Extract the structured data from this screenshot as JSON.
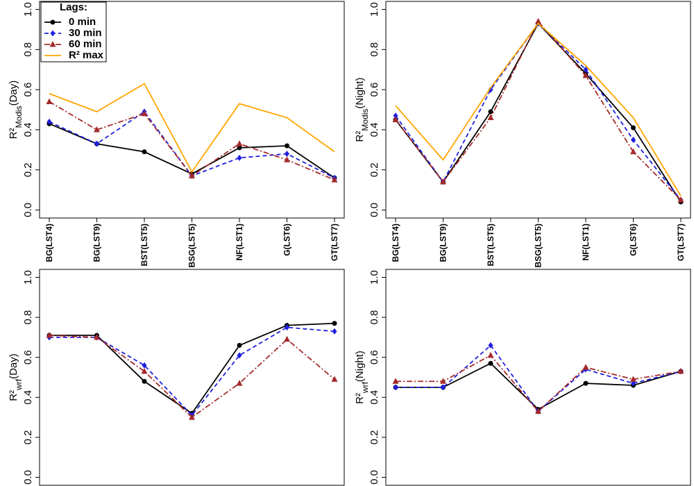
{
  "chart_data": [
    {
      "type": "line",
      "ylabel": [
        "R²",
        "Modis",
        "(Day)"
      ],
      "categories": [
        "BG(LST4)",
        "BG(LST9)",
        "BST(LST5)",
        "BSG(LST5)",
        "NF(LST1)",
        "G(LST6)",
        "GT(LST7)"
      ],
      "ylim": [
        -0.04,
        1.04
      ],
      "yticks": [
        {
          "value": 0,
          "label": "0.0"
        },
        0.2,
        0.4,
        0.6,
        0.8,
        {
          "value": 1,
          "label": "1.0"
        }
      ],
      "legend": {
        "title": "Lags:",
        "position": "upper left"
      },
      "series": [
        {
          "name": "0 min",
          "color": "#000000",
          "linestyle": "solid",
          "marker": "circle",
          "values": [
            0.43,
            0.33,
            0.29,
            0.18,
            0.31,
            0.32,
            0.16
          ]
        },
        {
          "name": "30 min",
          "color": "#1f1fe0",
          "linestyle": "dashed",
          "marker": "diamond",
          "values": [
            0.44,
            0.33,
            0.49,
            0.17,
            0.26,
            0.28,
            0.16
          ]
        },
        {
          "name": "60 min",
          "color": "#a52a2a",
          "linestyle": "dotdash",
          "marker": "triangle",
          "values": [
            0.54,
            0.4,
            0.48,
            0.17,
            0.33,
            0.25,
            0.15
          ]
        },
        {
          "name": "R² max",
          "color": "#ffa500",
          "linestyle": "solid",
          "values": [
            0.58,
            0.49,
            0.63,
            0.19,
            0.53,
            0.46,
            0.29
          ]
        }
      ]
    },
    {
      "type": "line",
      "ylabel": [
        "R²",
        "Modis",
        "(Night)"
      ],
      "categories": [
        "BG(LST4)",
        "BG(LST9)",
        "BST(LST5)",
        "BSG(LST5)",
        "NF(LST1)",
        "G(LST6)",
        "GT(LST7)"
      ],
      "ylim": [
        -0.04,
        1.04
      ],
      "yticks": [
        {
          "value": 0,
          "label": "0.0"
        },
        0.2,
        0.4,
        0.6,
        0.8,
        {
          "value": 1,
          "label": "1.0"
        }
      ],
      "series": [
        {
          "color": "#000000",
          "linestyle": "solid",
          "marker": "circle",
          "values": [
            0.45,
            0.14,
            0.49,
            0.93,
            0.68,
            0.41,
            0.04
          ]
        },
        {
          "color": "#1f1fe0",
          "linestyle": "dashed",
          "marker": "diamond",
          "values": [
            0.47,
            0.14,
            0.6,
            0.93,
            0.7,
            0.35,
            0.05
          ]
        },
        {
          "color": "#a52a2a",
          "linestyle": "dotdash",
          "marker": "triangle",
          "values": [
            0.45,
            0.14,
            0.46,
            0.94,
            0.67,
            0.29,
            0.05
          ]
        },
        {
          "color": "#ffa500",
          "linestyle": "solid",
          "values": [
            0.52,
            0.25,
            0.61,
            0.93,
            0.72,
            0.46,
            0.07
          ]
        }
      ]
    },
    {
      "type": "line",
      "ylabel": [
        "R²",
        "wrf",
        "(Day)"
      ],
      "ylim": [
        -0.04,
        1.04
      ],
      "yticks": [
        {
          "value": 0,
          "label": "0.0"
        },
        0.2,
        0.4,
        0.6,
        0.8,
        {
          "value": 1,
          "label": "1.0"
        }
      ],
      "series": [
        {
          "color": "#000000",
          "linestyle": "solid",
          "marker": "circle",
          "values": [
            0.71,
            0.71,
            0.48,
            0.32,
            0.66,
            0.76,
            0.77
          ]
        },
        {
          "color": "#1f1fe0",
          "linestyle": "dashed",
          "marker": "diamond",
          "values": [
            0.7,
            0.7,
            0.56,
            0.31,
            0.61,
            0.75,
            0.73
          ]
        },
        {
          "color": "#a52a2a",
          "linestyle": "dotdash",
          "marker": "triangle",
          "values": [
            0.71,
            0.7,
            0.53,
            0.3,
            0.47,
            0.69,
            0.49
          ]
        }
      ]
    },
    {
      "type": "line",
      "ylabel": [
        "R²",
        "wrf",
        "(Night)"
      ],
      "ylim": [
        -0.04,
        1.04
      ],
      "yticks": [
        {
          "value": 0,
          "label": "0.0"
        },
        0.2,
        0.4,
        0.6,
        0.8,
        {
          "value": 1,
          "label": "1.0"
        }
      ],
      "series": [
        {
          "color": "#000000",
          "linestyle": "solid",
          "marker": "circle",
          "values": [
            0.45,
            0.45,
            0.57,
            0.34,
            0.47,
            0.46,
            0.53
          ]
        },
        {
          "color": "#1f1fe0",
          "linestyle": "dashed",
          "marker": "diamond",
          "values": [
            0.45,
            0.45,
            0.66,
            0.33,
            0.54,
            0.47,
            0.53
          ]
        },
        {
          "color": "#a52a2a",
          "linestyle": "dotdash",
          "marker": "triangle",
          "values": [
            0.48,
            0.48,
            0.61,
            0.33,
            0.55,
            0.49,
            0.53
          ]
        }
      ]
    }
  ]
}
